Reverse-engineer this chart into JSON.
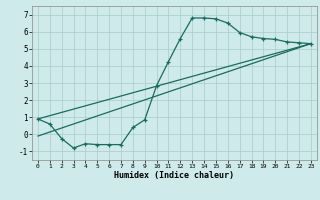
{
  "xlabel": "Humidex (Indice chaleur)",
  "bg_color": "#ceeaea",
  "grid_color": "#aacaca",
  "line_color": "#1a6b60",
  "xlim": [
    -0.5,
    23.5
  ],
  "ylim": [
    -1.5,
    7.5
  ],
  "xticks": [
    0,
    1,
    2,
    3,
    4,
    5,
    6,
    7,
    8,
    9,
    10,
    11,
    12,
    13,
    14,
    15,
    16,
    17,
    18,
    19,
    20,
    21,
    22,
    23
  ],
  "yticks": [
    -1,
    0,
    1,
    2,
    3,
    4,
    5,
    6,
    7
  ],
  "line1_x": [
    0,
    1,
    2,
    3,
    4,
    5,
    6,
    7,
    8,
    9,
    10,
    11,
    12,
    13,
    14,
    15,
    16,
    17,
    18,
    19,
    20,
    21,
    22,
    23
  ],
  "line1_y": [
    0.9,
    0.6,
    -0.25,
    -0.8,
    -0.55,
    -0.6,
    -0.6,
    -0.6,
    0.4,
    0.85,
    2.85,
    4.25,
    5.6,
    6.8,
    6.8,
    6.75,
    6.5,
    5.95,
    5.7,
    5.6,
    5.55,
    5.4,
    5.35,
    5.3
  ],
  "line2_x": [
    0,
    23
  ],
  "line2_y": [
    0.9,
    5.3
  ],
  "line3_x": [
    0,
    23
  ],
  "line3_y": [
    -0.1,
    5.3
  ]
}
